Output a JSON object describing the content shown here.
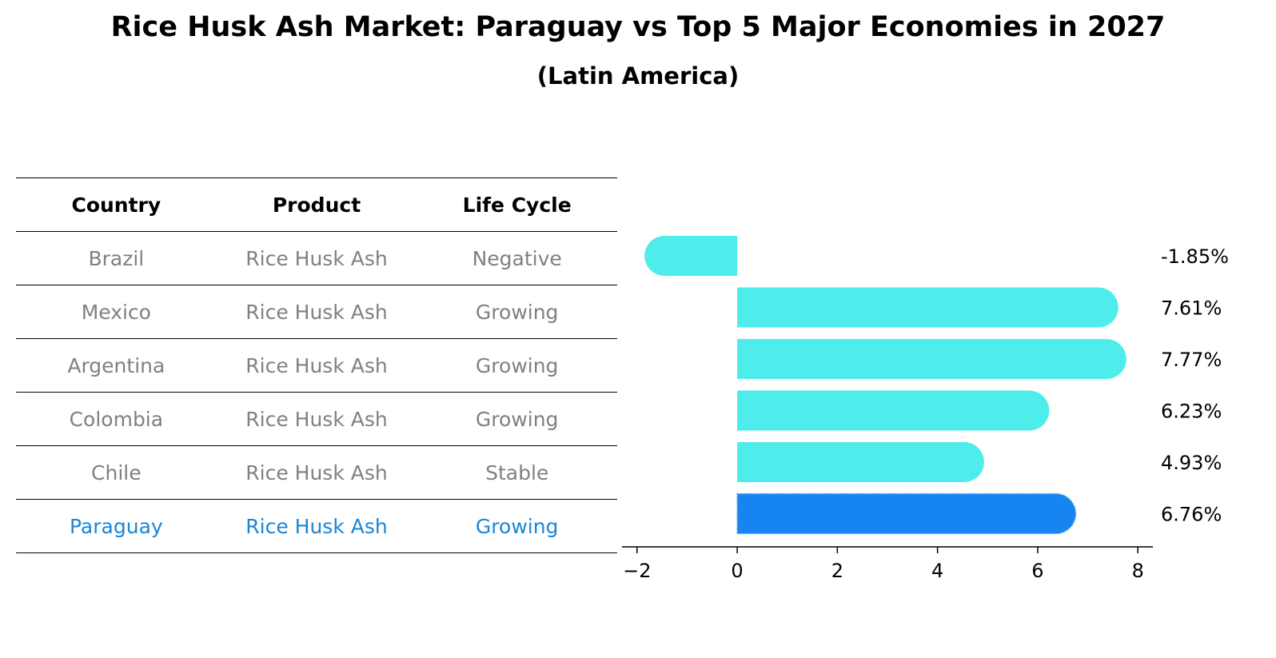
{
  "title": "Rice Husk Ash Market: Paraguay vs Top 5 Major Economies in 2027",
  "subtitle": "(Latin America)",
  "colors": {
    "bar": "#4EEDEB",
    "highlight_bar": "#1785F1",
    "highlight_text": "#1B86D6",
    "muted_text": "#808080"
  },
  "table": {
    "headers": [
      "Country",
      "Product",
      "Life Cycle"
    ],
    "rows": [
      {
        "cells": [
          "Brazil",
          "Rice Husk Ash",
          "Negative"
        ],
        "highlight": false
      },
      {
        "cells": [
          "Mexico",
          "Rice Husk Ash",
          "Growing"
        ],
        "highlight": false
      },
      {
        "cells": [
          "Argentina",
          "Rice Husk Ash",
          "Growing"
        ],
        "highlight": false
      },
      {
        "cells": [
          "Colombia",
          "Rice Husk Ash",
          "Growing"
        ],
        "highlight": false
      },
      {
        "cells": [
          "Chile",
          "Rice Husk Ash",
          "Stable"
        ],
        "highlight": false
      },
      {
        "cells": [
          "Paraguay",
          "Rice Husk Ash",
          "Growing"
        ],
        "highlight": true
      }
    ]
  },
  "chart_data": {
    "type": "bar",
    "orientation": "horizontal",
    "categories": [
      "Brazil",
      "Mexico",
      "Argentina",
      "Colombia",
      "Chile",
      "Paraguay"
    ],
    "values": [
      -1.85,
      7.61,
      7.77,
      6.23,
      4.93,
      6.76
    ],
    "value_labels": [
      "-1.85%",
      "7.61%",
      "7.77%",
      "6.23%",
      "4.93%",
      "6.76%"
    ],
    "highlight_index": 5,
    "xlim": [
      -2.3,
      8.3
    ],
    "xticks": [
      -2,
      0,
      2,
      4,
      6,
      8
    ],
    "xtick_labels": [
      "−2",
      "0",
      "2",
      "4",
      "6",
      "8"
    ],
    "grid": false
  }
}
